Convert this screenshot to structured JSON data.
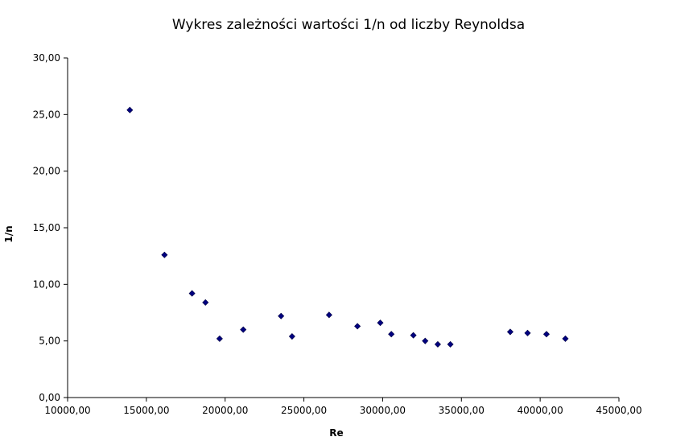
{
  "chart_data": {
    "type": "scatter",
    "title": "Wykres zależności wartości 1/n od liczby Reynoldsa",
    "xlabel": "Re",
    "ylabel": "1/n",
    "xlim": [
      10000,
      45000
    ],
    "ylim": [
      0,
      30
    ],
    "x_ticks": [
      "10000,00",
      "15000,00",
      "20000,00",
      "25000,00",
      "30000,00",
      "35000,00",
      "40000,00",
      "45000,00"
    ],
    "y_ticks": [
      "0,00",
      "5,00",
      "10,00",
      "15,00",
      "20,00",
      "25,00",
      "30,00"
    ],
    "grid": false,
    "legend": "none",
    "marker_color": "#000080",
    "series": [
      {
        "x": [
          13950,
          16150,
          17900,
          18750,
          19650,
          21150,
          23550,
          24250,
          26600,
          28400,
          29850,
          30550,
          31950,
          32700,
          33500,
          34300,
          38100,
          39200,
          40400,
          41600
        ],
        "y": [
          25.4,
          12.6,
          9.2,
          8.4,
          5.2,
          6.0,
          7.2,
          5.4,
          7.3,
          6.3,
          6.6,
          5.6,
          5.5,
          5.0,
          4.7,
          4.7,
          5.8,
          5.7,
          5.6,
          5.2
        ]
      }
    ]
  }
}
